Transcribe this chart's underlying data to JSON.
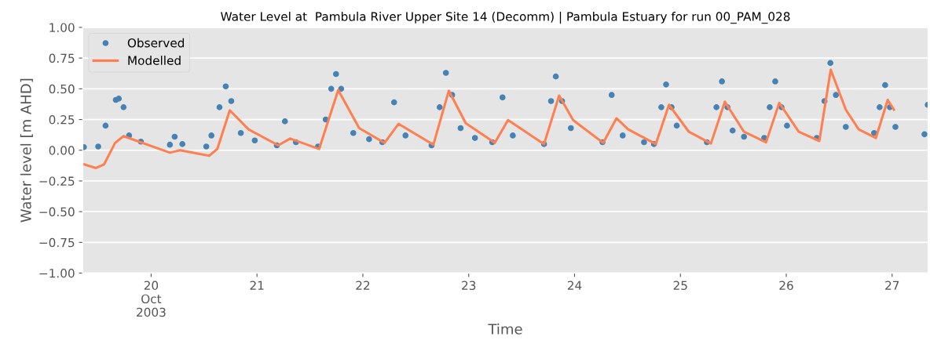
{
  "chart_data": {
    "type": "line",
    "title": "Water Level at  Pambula River Upper Site 14 (Decomm) | Pambula Estuary for run 00_PAM_028",
    "xlabel": "Time",
    "ylabel": "Water level [m AHD]",
    "xlim": [
      "2003-10-19T08:30",
      "2003-10-27T08:10"
    ],
    "ylim": [
      -1.0,
      1.0
    ],
    "xticks": [
      {
        "value": "2003-10-20",
        "label": "20\nOct\n2003"
      },
      {
        "value": "2003-10-21",
        "label": "21"
      },
      {
        "value": "2003-10-22",
        "label": "22"
      },
      {
        "value": "2003-10-23",
        "label": "23"
      },
      {
        "value": "2003-10-24",
        "label": "24"
      },
      {
        "value": "2003-10-25",
        "label": "25"
      },
      {
        "value": "2003-10-26",
        "label": "26"
      },
      {
        "value": "2003-10-27",
        "label": "27"
      }
    ],
    "yticks": [
      {
        "value": -1.0,
        "label": "−1.00"
      },
      {
        "value": -0.75,
        "label": "−0.75"
      },
      {
        "value": -0.5,
        "label": "−0.50"
      },
      {
        "value": -0.25,
        "label": "−0.25"
      },
      {
        "value": 0.0,
        "label": "0.00"
      },
      {
        "value": 0.25,
        "label": "0.25"
      },
      {
        "value": 0.5,
        "label": "0.50"
      },
      {
        "value": 0.75,
        "label": "0.75"
      },
      {
        "value": 1.0,
        "label": "1.00"
      }
    ],
    "grid": "y",
    "legend": "top left",
    "series": [
      {
        "name": "Observed",
        "type": "scatter",
        "marker": "circle",
        "color": "#4682b4",
        "x": [
          "2003-10-19T08:45",
          "2003-10-19T12:00",
          "2003-10-19T13:40",
          "2003-10-19T16:00",
          "2003-10-19T16:40",
          "2003-10-19T17:45",
          "2003-10-19T19:00",
          "2003-10-19T21:40",
          "2003-10-20T04:15",
          "2003-10-20T05:20",
          "2003-10-20T07:05",
          "2003-10-20T12:30",
          "2003-10-20T13:40",
          "2003-10-20T15:30",
          "2003-10-20T16:55",
          "2003-10-20T18:10",
          "2003-10-20T20:20",
          "2003-10-20T23:30",
          "2003-10-21T04:30",
          "2003-10-21T06:20",
          "2003-10-21T08:50",
          "2003-10-21T13:50",
          "2003-10-21T15:35",
          "2003-10-21T16:50",
          "2003-10-21T17:55",
          "2003-10-21T19:05",
          "2003-10-21T21:50",
          "2003-10-22T01:25",
          "2003-10-22T04:25",
          "2003-10-22T07:05",
          "2003-10-22T09:40",
          "2003-10-22T15:35",
          "2003-10-22T17:25",
          "2003-10-22T18:50",
          "2003-10-22T20:15",
          "2003-10-22T22:10",
          "2003-10-23T01:25",
          "2003-10-23T05:20",
          "2003-10-23T07:40",
          "2003-10-23T10:00",
          "2003-10-23T17:05",
          "2003-10-23T18:40",
          "2003-10-23T19:45",
          "2003-10-23T21:10",
          "2003-10-23T23:10",
          "2003-10-24T06:20",
          "2003-10-24T08:25",
          "2003-10-24T10:55",
          "2003-10-24T15:45",
          "2003-10-24T18:00",
          "2003-10-24T19:40",
          "2003-10-24T20:45",
          "2003-10-24T22:00",
          "2003-10-24T23:10",
          "2003-10-25T06:00",
          "2003-10-25T08:10",
          "2003-10-25T09:25",
          "2003-10-25T10:40",
          "2003-10-25T11:50",
          "2003-10-25T14:25",
          "2003-10-25T19:00",
          "2003-10-25T20:15",
          "2003-10-25T21:30",
          "2003-10-25T22:55",
          "2003-10-26T00:10",
          "2003-10-26T06:55",
          "2003-10-26T08:40",
          "2003-10-26T10:00",
          "2003-10-26T11:15",
          "2003-10-26T13:30",
          "2003-10-26T19:55",
          "2003-10-26T21:10",
          "2003-10-26T22:25",
          "2003-10-26T23:30",
          "2003-10-27T00:45",
          "2003-10-27T07:20",
          "2003-10-27T08:05"
        ],
        "values": [
          0.025,
          0.03,
          0.2,
          0.41,
          0.42,
          0.35,
          0.12,
          0.07,
          0.045,
          0.11,
          0.05,
          0.03,
          0.12,
          0.35,
          0.52,
          0.4,
          0.14,
          0.08,
          0.04,
          0.235,
          0.065,
          0.03,
          0.25,
          0.5,
          0.62,
          0.5,
          0.14,
          0.09,
          0.065,
          0.39,
          0.12,
          0.04,
          0.35,
          0.63,
          0.45,
          0.18,
          0.1,
          0.065,
          0.43,
          0.12,
          0.05,
          0.4,
          0.6,
          0.4,
          0.18,
          0.065,
          0.45,
          0.12,
          0.065,
          0.05,
          0.35,
          0.535,
          0.35,
          0.2,
          0.065,
          0.35,
          0.56,
          0.35,
          0.16,
          0.11,
          0.1,
          0.35,
          0.56,
          0.35,
          0.2,
          0.1,
          0.4,
          0.71,
          0.45,
          0.19,
          0.14,
          0.35,
          0.53,
          0.35,
          0.19,
          0.13,
          0.37
        ]
      },
      {
        "name": "Modelled",
        "marker": "none",
        "line_style": "solid",
        "color": "#ff7f50",
        "x": [
          "2003-10-19T08:45",
          "2003-10-19T11:30",
          "2003-10-19T13:20",
          "2003-10-19T15:50",
          "2003-10-19T17:45",
          "2003-10-20T04:15",
          "2003-10-20T06:35",
          "2003-10-20T13:10",
          "2003-10-20T15:00",
          "2003-10-20T17:50",
          "2003-10-20T22:05",
          "2003-10-21T04:50",
          "2003-10-21T07:30",
          "2003-10-21T14:05",
          "2003-10-21T18:25",
          "2003-10-21T23:10",
          "2003-10-22T04:55",
          "2003-10-22T08:05",
          "2003-10-22T16:00",
          "2003-10-22T19:30",
          "2003-10-22T23:20",
          "2003-10-23T05:55",
          "2003-10-23T08:55",
          "2003-10-23T17:05",
          "2003-10-23T20:30",
          "2003-10-23T23:40",
          "2003-10-24T06:30",
          "2003-10-24T09:30",
          "2003-10-24T12:10",
          "2003-10-24T18:25",
          "2003-10-24T21:25",
          "2003-10-25T01:55",
          "2003-10-25T06:55",
          "2003-10-25T10:05",
          "2003-10-25T14:25",
          "2003-10-25T19:25",
          "2003-10-25T22:25",
          "2003-10-26T02:50",
          "2003-10-26T07:30",
          "2003-10-26T10:05",
          "2003-10-26T13:30",
          "2003-10-26T16:25",
          "2003-10-26T20:20",
          "2003-10-26T23:00",
          "2003-10-27T00:25"
        ],
        "values": [
          -0.115,
          -0.145,
          -0.115,
          0.06,
          0.115,
          -0.02,
          0.0,
          -0.045,
          0.01,
          0.325,
          0.17,
          0.04,
          0.095,
          0.01,
          0.49,
          0.18,
          0.06,
          0.215,
          0.045,
          0.485,
          0.22,
          0.06,
          0.245,
          0.05,
          0.445,
          0.245,
          0.06,
          0.26,
          0.17,
          0.05,
          0.37,
          0.15,
          0.055,
          0.395,
          0.15,
          0.065,
          0.385,
          0.15,
          0.075,
          0.655,
          0.33,
          0.17,
          0.1,
          0.41,
          0.33
        ]
      }
    ]
  }
}
